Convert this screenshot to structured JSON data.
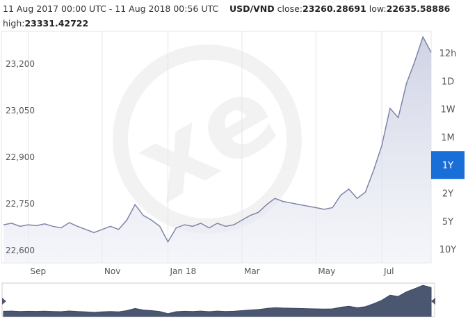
{
  "chart_data": {
    "type": "area",
    "title": "USD/VND",
    "subtitle": "11 Aug 2017 00:00 UTC - 11 Aug 2018 00:56 UTC",
    "stats": [
      {
        "label": "close:",
        "value": 23260.28691
      },
      {
        "label": "low:",
        "value": 22635.58886
      },
      {
        "label": "high:",
        "value": 23331.42722
      }
    ],
    "categories": [
      null,
      null,
      null,
      "Sep",
      null,
      null,
      null,
      null,
      null,
      null,
      null,
      null,
      "Nov",
      null,
      null,
      null,
      null,
      null,
      null,
      null,
      "Jan 18",
      null,
      null,
      null,
      null,
      null,
      null,
      null,
      null,
      "Mar",
      null,
      null,
      null,
      null,
      null,
      null,
      null,
      null,
      "May",
      null,
      null,
      null,
      null,
      null,
      null,
      null,
      "Jul",
      null,
      null,
      null,
      null,
      null,
      null
    ],
    "values": [
      22705,
      22710,
      22700,
      22705,
      22702,
      22708,
      22700,
      22695,
      22712,
      22700,
      22690,
      22680,
      22690,
      22700,
      22690,
      22720,
      22770,
      22735,
      22720,
      22700,
      22650,
      22695,
      22705,
      22700,
      22710,
      22695,
      22710,
      22700,
      22705,
      22720,
      22735,
      22745,
      22770,
      22790,
      22780,
      22775,
      22770,
      22765,
      22760,
      22755,
      22760,
      22800,
      22820,
      22790,
      22810,
      22880,
      22960,
      23080,
      23050,
      23160,
      23230,
      23310,
      23260
    ],
    "color": "#7d84a8",
    "ylim": [
      22582,
      23328
    ],
    "yticks": [
      {
        "value": 22600,
        "label": "22,600"
      },
      {
        "value": 22750,
        "label": "22,750"
      },
      {
        "value": 22900,
        "label": "22,900"
      },
      {
        "value": 23050,
        "label": "23,050"
      },
      {
        "value": 23200,
        "label": "23,200"
      }
    ],
    "grid": true,
    "range_buttons": [
      "12h",
      "1D",
      "1W",
      "1M",
      "1Y",
      "2Y",
      "5Y",
      "10Y"
    ],
    "selected_range": "1Y"
  }
}
